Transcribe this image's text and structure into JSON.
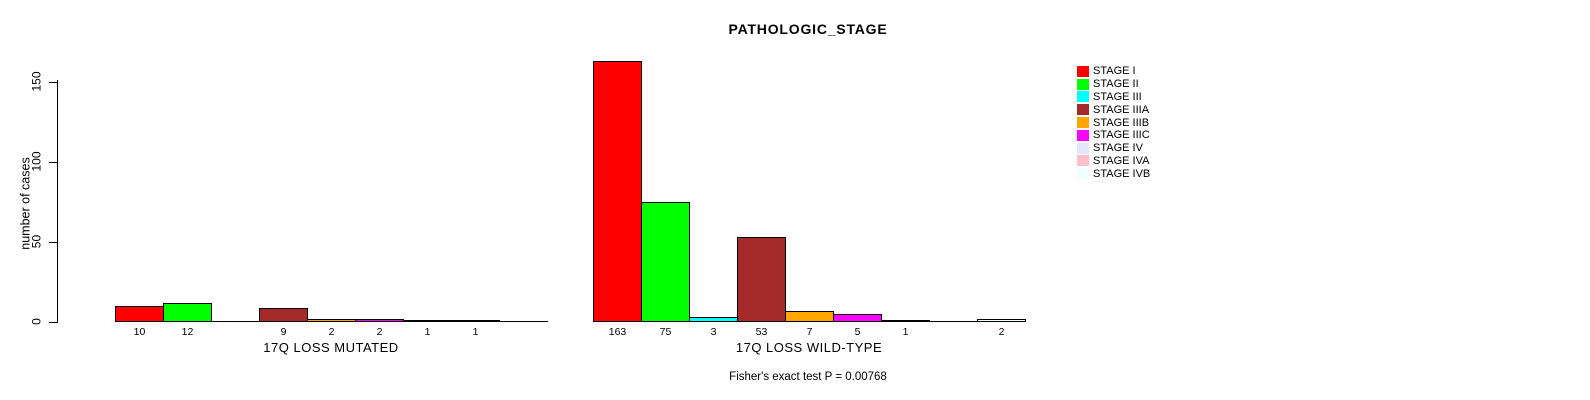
{
  "chart_data": {
    "type": "bar",
    "title": "PATHOLOGIC_STAGE",
    "ylabel": "number of cases",
    "yticks": [
      0,
      50,
      100,
      150
    ],
    "ylim": [
      0,
      163
    ],
    "grid": false,
    "legend_position": "right",
    "categories": [
      "STAGE I",
      "STAGE II",
      "STAGE III",
      "STAGE IIIA",
      "STAGE IIIB",
      "STAGE IIIC",
      "STAGE IV",
      "STAGE IVA",
      "STAGE IVB"
    ],
    "colors": [
      "#FF0000",
      "#00FF00",
      "#00FFFF",
      "#A52A2A",
      "#FFA500",
      "#FF00FF",
      "#E6E6FA",
      "#FFC0CB",
      "#F0FFFF"
    ],
    "series": [
      {
        "name": "17Q LOSS MUTATED",
        "values": [
          10,
          12,
          0,
          9,
          2,
          2,
          1,
          1,
          0
        ]
      },
      {
        "name": "17Q LOSS WILD-TYPE",
        "values": [
          163,
          75,
          3,
          53,
          7,
          5,
          1,
          0,
          2
        ]
      }
    ],
    "annotation": "Fisher's exact test P = 0.00768"
  }
}
